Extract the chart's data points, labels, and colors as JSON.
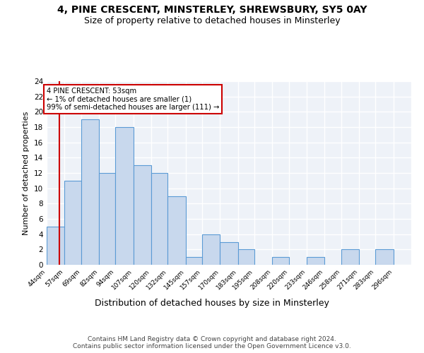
{
  "title1": "4, PINE CRESCENT, MINSTERLEY, SHREWSBURY, SY5 0AY",
  "title2": "Size of property relative to detached houses in Minsterley",
  "xlabel": "Distribution of detached houses by size in Minsterley",
  "ylabel": "Number of detached properties",
  "bin_labels": [
    "44sqm",
    "57sqm",
    "69sqm",
    "82sqm",
    "94sqm",
    "107sqm",
    "120sqm",
    "132sqm",
    "145sqm",
    "157sqm",
    "170sqm",
    "183sqm",
    "195sqm",
    "208sqm",
    "220sqm",
    "233sqm",
    "246sqm",
    "258sqm",
    "271sqm",
    "283sqm",
    "296sqm"
  ],
  "bin_edges": [
    44,
    57,
    69,
    82,
    94,
    107,
    120,
    132,
    145,
    157,
    170,
    183,
    195,
    208,
    220,
    233,
    246,
    258,
    271,
    283,
    296
  ],
  "counts": [
    5,
    11,
    19,
    12,
    18,
    13,
    12,
    9,
    1,
    4,
    3,
    2,
    0,
    1,
    0,
    1,
    0,
    2,
    0,
    2
  ],
  "bar_facecolor": "#c8d8ed",
  "bar_edgecolor": "#5b9bd5",
  "property_size": 53,
  "vline_color": "#cc0000",
  "annotation_line1": "4 PINE CRESCENT: 53sqm",
  "annotation_line2": "← 1% of detached houses are smaller (1)",
  "annotation_line3": "99% of semi-detached houses are larger (111) →",
  "annotation_box_edgecolor": "#cc0000",
  "annotation_box_facecolor": "#ffffff",
  "ylim": [
    0,
    24
  ],
  "yticks": [
    0,
    2,
    4,
    6,
    8,
    10,
    12,
    14,
    16,
    18,
    20,
    22,
    24
  ],
  "background_color": "#eef2f8",
  "footer_text": "Contains HM Land Registry data © Crown copyright and database right 2024.\nContains public sector information licensed under the Open Government Licence v3.0.",
  "title1_fontsize": 10,
  "title2_fontsize": 9,
  "xlabel_fontsize": 9,
  "ylabel_fontsize": 8,
  "footer_fontsize": 6.5
}
